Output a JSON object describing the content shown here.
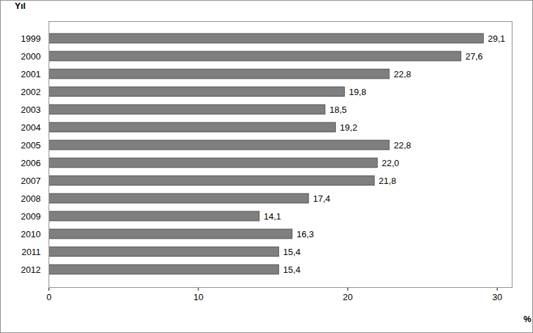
{
  "chart_data": {
    "type": "bar",
    "orientation": "horizontal",
    "y_label": "Yıl",
    "x_label": "%",
    "categories": [
      "1999",
      "2000",
      "2001",
      "2002",
      "2003",
      "2004",
      "2005",
      "2006",
      "2007",
      "2008",
      "2009",
      "2010",
      "2011",
      "2012"
    ],
    "values": [
      29.1,
      27.6,
      22.8,
      19.8,
      18.5,
      19.2,
      22.8,
      22.0,
      21.8,
      17.4,
      14.1,
      16.3,
      15.4,
      15.4
    ],
    "value_labels": [
      "29,1",
      "27,6",
      "22,8",
      "19,8",
      "18,5",
      "19,2",
      "22,8",
      "22,0",
      "21,8",
      "17,4",
      "14,1",
      "16,3",
      "15,4",
      "15,4"
    ],
    "color": "#7f7f7f",
    "xlim": [
      0,
      31
    ],
    "xticks": [
      0,
      10,
      20,
      30
    ],
    "grid": false,
    "data_labels": true
  }
}
